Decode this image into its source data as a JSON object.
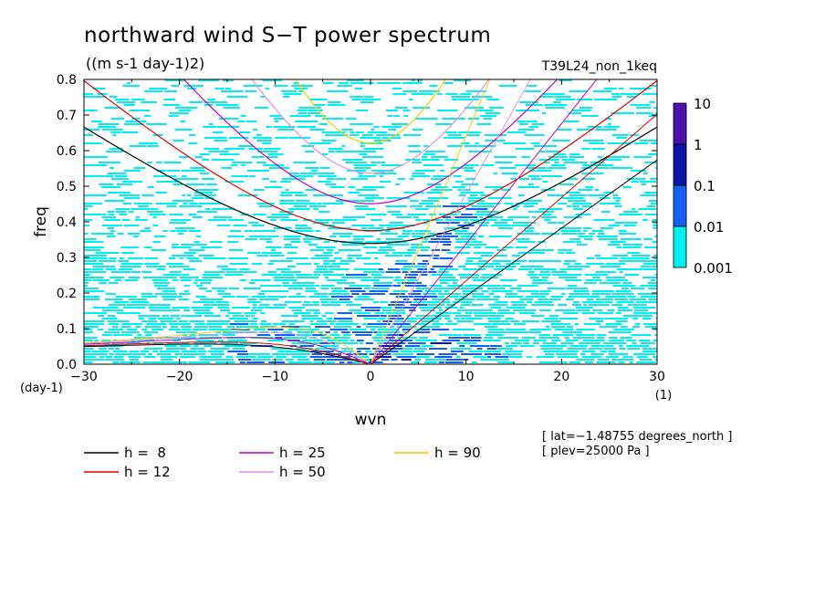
{
  "chart_data": {
    "type": "heatmap",
    "title": "northward wind S−T power spectrum",
    "subtitle": "((m s-1 day-1)2)",
    "run_name": "T39L24_non_1keq",
    "xlabel": "wvn",
    "xunit": "(1)",
    "ylabel": "freq",
    "yunit": "(day-1)",
    "xlim": [
      -30,
      30
    ],
    "ylim": [
      0,
      0.8
    ],
    "xticks": [
      "−30",
      "−20",
      "−10",
      "0",
      "10",
      "20",
      "30"
    ],
    "xtick_values": [
      -30,
      -20,
      -10,
      0,
      10,
      20,
      30
    ],
    "yticks": [
      "0.0",
      "0.1",
      "0.2",
      "0.3",
      "0.4",
      "0.5",
      "0.6",
      "0.7",
      "0.8"
    ],
    "ytick_values": [
      0,
      0.1,
      0.2,
      0.3,
      0.4,
      0.5,
      0.6,
      0.7,
      0.8
    ],
    "colorbar": {
      "levels": [
        "10",
        "1",
        "0.1",
        "0.01",
        "0.001"
      ],
      "colors": [
        "#4b10b0",
        "#0a14a8",
        "#1460f0",
        "#00f0f0"
      ]
    },
    "dispersion_curves": [
      {
        "label": "h =  8",
        "equivalent_depth": 8,
        "color": "#000000"
      },
      {
        "label": "h = 12",
        "equivalent_depth": 12,
        "color": "#e00000"
      },
      {
        "label": "h = 25",
        "equivalent_depth": 25,
        "color": "#c000c0"
      },
      {
        "label": "h = 50",
        "equivalent_depth": 50,
        "color": "#e090e0"
      },
      {
        "label": "h = 90",
        "equivalent_depth": 90,
        "color": "#f0d000"
      }
    ],
    "annotations": [
      "[ lat=−1.48755 degrees_north ]",
      "[ plev=25000 Pa ]"
    ]
  }
}
